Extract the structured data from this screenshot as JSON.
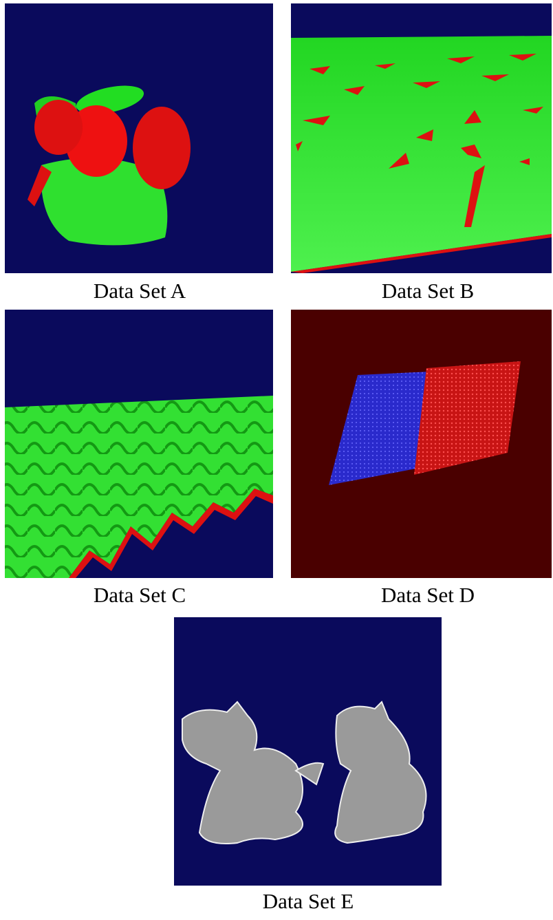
{
  "figure": {
    "panels": [
      {
        "caption": "Data Set A"
      },
      {
        "caption": "Data Set B"
      },
      {
        "caption": "Data Set C"
      },
      {
        "caption": "Data Set D"
      },
      {
        "caption": "Data Set E"
      }
    ]
  }
}
